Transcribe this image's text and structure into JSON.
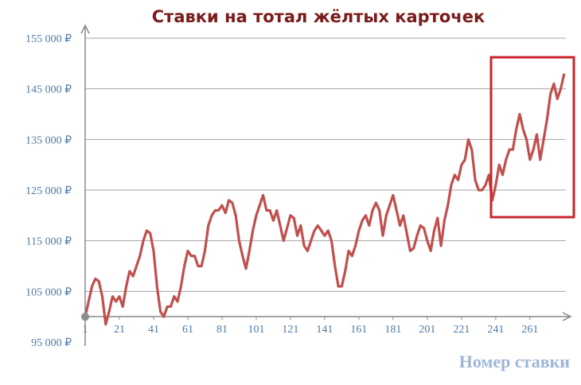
{
  "chart_data": {
    "type": "line",
    "title": "Ставки на тотал жёлтых карточек",
    "x_label": "Номер ставки",
    "x": [
      1,
      3,
      5,
      7,
      9,
      11,
      13,
      15,
      17,
      19,
      21,
      23,
      25,
      27,
      29,
      31,
      33,
      35,
      37,
      39,
      41,
      43,
      45,
      47,
      49,
      51,
      53,
      55,
      57,
      59,
      61,
      63,
      65,
      67,
      69,
      71,
      73,
      75,
      77,
      79,
      81,
      83,
      85,
      87,
      89,
      91,
      93,
      95,
      97,
      99,
      101,
      103,
      105,
      107,
      109,
      111,
      113,
      115,
      117,
      119,
      121,
      123,
      125,
      127,
      129,
      131,
      133,
      135,
      137,
      139,
      141,
      143,
      145,
      147,
      149,
      151,
      153,
      155,
      157,
      159,
      161,
      163,
      165,
      167,
      169,
      171,
      173,
      175,
      177,
      179,
      181,
      183,
      185,
      187,
      189,
      191,
      193,
      195,
      197,
      199,
      201,
      203,
      205,
      207,
      209,
      211,
      213,
      215,
      217,
      219,
      221,
      223,
      225,
      227,
      229,
      231,
      233,
      235,
      237,
      239,
      241,
      243,
      245,
      247,
      249,
      251,
      253,
      255,
      257,
      259,
      261,
      263,
      265,
      267,
      269,
      271,
      273,
      275,
      277,
      279,
      281
    ],
    "series": [
      {
        "color": "#c0504d",
        "values": [
          100000,
          103000,
          106000,
          107500,
          107000,
          104000,
          98500,
          101000,
          104000,
          103000,
          104000,
          102000,
          106000,
          109000,
          108000,
          110000,
          112000,
          115000,
          117000,
          116500,
          113000,
          106000,
          101000,
          100000,
          102000,
          102000,
          104000,
          103000,
          106000,
          110000,
          113000,
          112000,
          112000,
          110000,
          110000,
          113000,
          118000,
          120000,
          121000,
          121000,
          122000,
          120500,
          123000,
          122500,
          120000,
          115000,
          112000,
          109500,
          113000,
          117000,
          120000,
          122000,
          124000,
          121000,
          121000,
          119000,
          121000,
          118000,
          115000,
          117500,
          120000,
          119500,
          116000,
          118000,
          114000,
          113000,
          115000,
          117000,
          118000,
          117000,
          116000,
          117000,
          115000,
          110000,
          106000,
          106000,
          109000,
          113000,
          112000,
          114000,
          117000,
          119000,
          120000,
          118000,
          121000,
          122500,
          121000,
          116000,
          120000,
          122000,
          124000,
          121000,
          118000,
          120000,
          116500,
          113000,
          113500,
          116000,
          118000,
          117500,
          115000,
          113000,
          117000,
          119500,
          114000,
          119000,
          122000,
          126000,
          128000,
          127000,
          130000,
          131000,
          135000,
          133000,
          127000,
          125000,
          125000,
          126000,
          128000,
          123000,
          126000,
          130000,
          128000,
          131000,
          133000,
          133000,
          137000,
          140000,
          137000,
          135000,
          131000,
          133000,
          136000,
          131000,
          135000,
          139000,
          144000,
          146000,
          143000,
          145000,
          148000
        ]
      }
    ],
    "xlim": [
      1,
      282
    ],
    "xticks": [
      1,
      21,
      41,
      61,
      81,
      101,
      121,
      141,
      161,
      181,
      201,
      221,
      241,
      261
    ],
    "ylim": [
      95000,
      155000
    ],
    "yticks": [
      {
        "value": 95000,
        "label": "95 000 ₽"
      },
      {
        "value": 105000,
        "label": "105 000 ₽"
      },
      {
        "value": 115000,
        "label": "115 000 ₽"
      },
      {
        "value": 125000,
        "label": "125 000 ₽"
      },
      {
        "value": 135000,
        "label": "135 000 ₽"
      },
      {
        "value": 145000,
        "label": "145 000 ₽"
      },
      {
        "value": 155000,
        "label": "155 000 ₽"
      }
    ],
    "grid": true
  }
}
